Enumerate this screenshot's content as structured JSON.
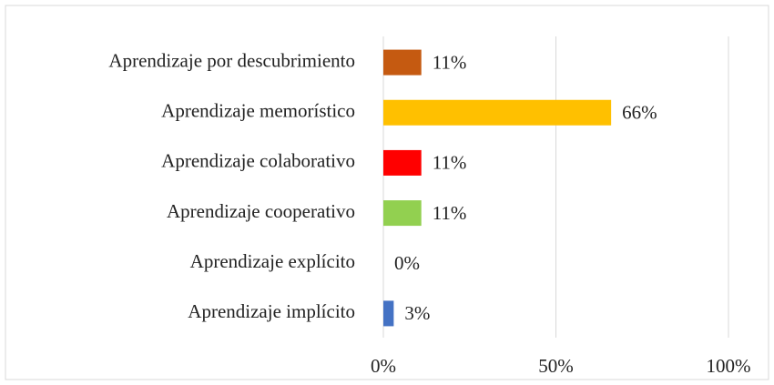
{
  "chart_data": {
    "type": "bar",
    "orientation": "horizontal",
    "categories": [
      "Aprendizaje por descubrimiento",
      "Aprendizaje memorístico",
      "Aprendizaje colaborativo",
      "Aprendizaje cooperativo",
      "Aprendizaje explícito",
      "Aprendizaje implícito"
    ],
    "values": [
      11,
      66,
      11,
      11,
      0,
      3
    ],
    "value_labels": [
      "11%",
      "66%",
      "11%",
      "11%",
      "0%",
      "3%"
    ],
    "colors": [
      "#c55a11",
      "#ffc000",
      "#ff0000",
      "#92d050",
      "#a5a5a5",
      "#4472c4"
    ],
    "xlim": [
      0,
      100
    ],
    "xticks": [
      {
        "value": 0,
        "label": "0%"
      },
      {
        "value": 50,
        "label": "50%"
      },
      {
        "value": 100,
        "label": "100%"
      }
    ],
    "grid": true
  }
}
